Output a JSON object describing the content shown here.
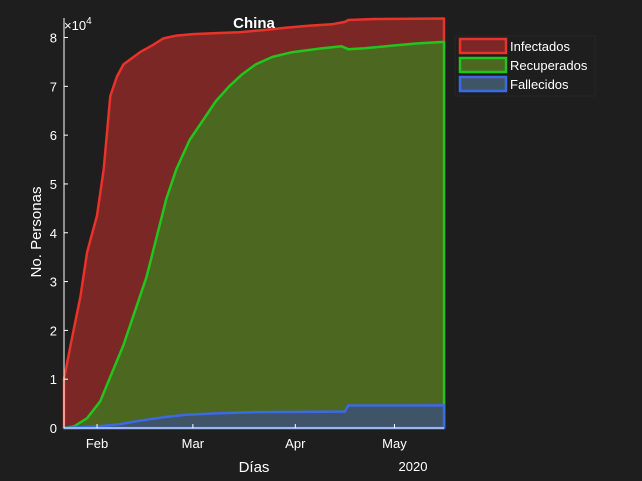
{
  "chart_data": {
    "type": "area",
    "title": "China",
    "xlabel": "Días",
    "ylabel": "No. Personas",
    "y_exponent_label": "×10",
    "y_exponent_power": "4",
    "year_label": "2020",
    "x_domain": [
      "2020-01-22",
      "2020-05-16"
    ],
    "ylim": [
      0,
      84000
    ],
    "x_ticks": [
      {
        "date": "2020-02-01",
        "label": "Feb"
      },
      {
        "date": "2020-03-01",
        "label": "Mar"
      },
      {
        "date": "2020-04-01",
        "label": "Apr"
      },
      {
        "date": "2020-05-01",
        "label": "May"
      }
    ],
    "y_ticks": [
      {
        "value": 0,
        "label": "0"
      },
      {
        "value": 10000,
        "label": "1"
      },
      {
        "value": 20000,
        "label": "2"
      },
      {
        "value": 30000,
        "label": "3"
      },
      {
        "value": 40000,
        "label": "4"
      },
      {
        "value": 50000,
        "label": "5"
      },
      {
        "value": 60000,
        "label": "6"
      },
      {
        "value": 70000,
        "label": "7"
      },
      {
        "value": 80000,
        "label": "8"
      }
    ],
    "legend_position": "outside-top-right",
    "series": [
      {
        "name": "Infectados",
        "color": "#e8332a",
        "fill": "#7a2725",
        "points": [
          [
            "2020-01-22",
            0
          ],
          [
            "2020-01-22",
            10000
          ],
          [
            "2020-01-24",
            17000
          ],
          [
            "2020-01-27",
            27000
          ],
          [
            "2020-01-29",
            36000
          ],
          [
            "2020-02-01",
            43500
          ],
          [
            "2020-02-03",
            53000
          ],
          [
            "2020-02-05",
            68000
          ],
          [
            "2020-02-07",
            72000
          ],
          [
            "2020-02-09",
            74500
          ],
          [
            "2020-02-11",
            75500
          ],
          [
            "2020-02-14",
            77000
          ],
          [
            "2020-02-18",
            78500
          ],
          [
            "2020-02-21",
            79800
          ],
          [
            "2020-02-25",
            80400
          ],
          [
            "2020-03-01",
            80700
          ],
          [
            "2020-03-08",
            80900
          ],
          [
            "2020-03-15",
            81100
          ],
          [
            "2020-03-22",
            81500
          ],
          [
            "2020-03-29",
            82000
          ],
          [
            "2020-04-05",
            82400
          ],
          [
            "2020-04-12",
            82700
          ],
          [
            "2020-04-16",
            83200
          ],
          [
            "2020-04-17",
            83600
          ],
          [
            "2020-04-25",
            83800
          ],
          [
            "2020-05-16",
            83900
          ],
          [
            "2020-05-16",
            0
          ]
        ]
      },
      {
        "name": "Recuperados",
        "color": "#22c41e",
        "fill": "#4c6720",
        "points": [
          [
            "2020-01-22",
            0
          ],
          [
            "2020-01-25",
            300
          ],
          [
            "2020-01-29",
            2000
          ],
          [
            "2020-02-02",
            5500
          ],
          [
            "2020-02-05",
            10500
          ],
          [
            "2020-02-09",
            17000
          ],
          [
            "2020-02-12",
            23000
          ],
          [
            "2020-02-16",
            31000
          ],
          [
            "2020-02-19",
            39000
          ],
          [
            "2020-02-22",
            47000
          ],
          [
            "2020-02-25",
            53000
          ],
          [
            "2020-02-29",
            59000
          ],
          [
            "2020-03-04",
            63000
          ],
          [
            "2020-03-08",
            67000
          ],
          [
            "2020-03-12",
            70000
          ],
          [
            "2020-03-16",
            72500
          ],
          [
            "2020-03-20",
            74500
          ],
          [
            "2020-03-25",
            76000
          ],
          [
            "2020-03-31",
            77000
          ],
          [
            "2020-04-08",
            77700
          ],
          [
            "2020-04-15",
            78200
          ],
          [
            "2020-04-17",
            77600
          ],
          [
            "2020-04-22",
            77800
          ],
          [
            "2020-04-30",
            78300
          ],
          [
            "2020-05-08",
            78800
          ],
          [
            "2020-05-16",
            79100
          ],
          [
            "2020-05-16",
            0
          ]
        ]
      },
      {
        "name": "Fallecidos",
        "color": "#3a6be0",
        "fill": "#3f5467",
        "points": [
          [
            "2020-01-22",
            0
          ],
          [
            "2020-02-01",
            300
          ],
          [
            "2020-02-08",
            800
          ],
          [
            "2020-02-14",
            1500
          ],
          [
            "2020-02-21",
            2200
          ],
          [
            "2020-02-28",
            2700
          ],
          [
            "2020-03-08",
            3000
          ],
          [
            "2020-03-20",
            3250
          ],
          [
            "2020-04-01",
            3300
          ],
          [
            "2020-04-15",
            3350
          ],
          [
            "2020-04-16",
            3350
          ],
          [
            "2020-04-17",
            4600
          ],
          [
            "2020-05-16",
            4630
          ],
          [
            "2020-05-16",
            0
          ]
        ]
      }
    ]
  }
}
